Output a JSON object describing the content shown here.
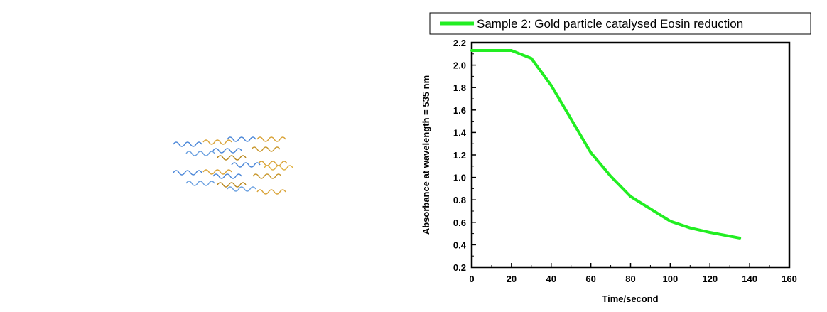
{
  "chart_data": {
    "type": "line",
    "title": "",
    "xlabel": "Time/second",
    "ylabel": "Absorbance at wavelength = 535 nm",
    "xlim": [
      0,
      160
    ],
    "ylim": [
      0.2,
      2.2
    ],
    "x_ticks": [
      0,
      20,
      40,
      60,
      80,
      100,
      120,
      140,
      160
    ],
    "y_ticks": [
      0.2,
      0.4,
      0.6,
      0.8,
      1.0,
      1.2,
      1.4,
      1.6,
      1.8,
      2.0,
      2.2
    ],
    "x_tick_labels": [
      "0",
      "20",
      "40",
      "60",
      "80",
      "100",
      "120",
      "140",
      "160"
    ],
    "y_tick_labels": [
      "0.2",
      "0.4",
      "0.6",
      "0.8",
      "1.0",
      "1.2",
      "1.4",
      "1.6",
      "1.8",
      "2.0",
      "2.2"
    ],
    "grid": false,
    "legend_position": "top",
    "series": [
      {
        "name": "Sample 2: Gold particle catalysed Eosin reduction",
        "color": "#22ee22",
        "x": [
          0,
          10,
          20,
          30,
          40,
          50,
          60,
          70,
          80,
          90,
          100,
          110,
          120,
          135
        ],
        "y": [
          2.13,
          2.13,
          2.13,
          2.06,
          1.82,
          1.52,
          1.22,
          1.01,
          0.83,
          0.72,
          0.61,
          0.55,
          0.51,
          0.46
        ]
      }
    ]
  }
}
